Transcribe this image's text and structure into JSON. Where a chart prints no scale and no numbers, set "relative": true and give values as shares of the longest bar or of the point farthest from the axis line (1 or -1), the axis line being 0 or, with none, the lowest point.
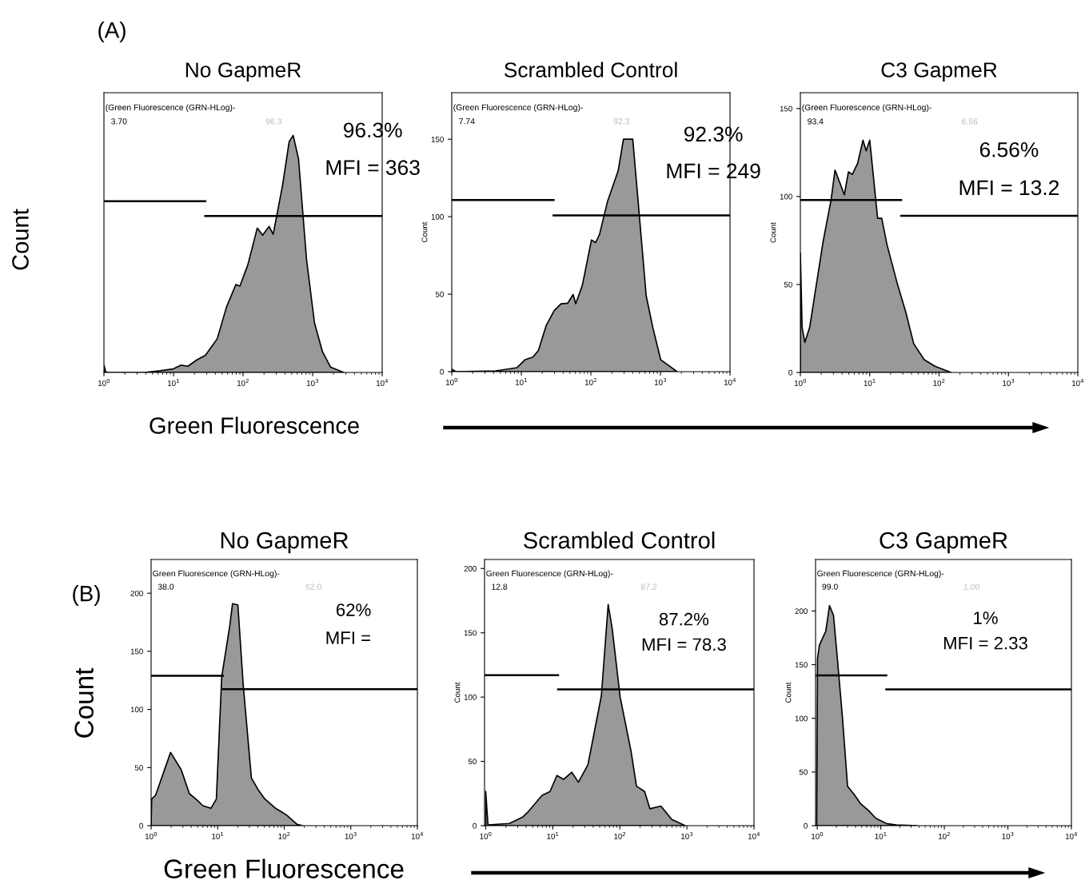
{
  "chart_data": [
    {
      "type": "area",
      "title": "No GapmeR",
      "xlabel": "Green Fluorescence",
      "ylabel": "Count",
      "log": "x",
      "xlim": [
        1,
        10000
      ],
      "xticks": [
        {
          "value": 1,
          "label": "10$^{0}$"
        },
        {
          "value": 10,
          "label": "10$^{1}$"
        },
        {
          "value": 100,
          "label": "10$^{2}$"
        },
        {
          "value": 1000,
          "label": "10$^{3}$"
        },
        {
          "value": 10000,
          "label": "10$^{4}$"
        }
      ],
      "relative": true,
      "annotations": [
        "(Green Fluorescence (GRN-HLog)-",
        "3.70",
        "96.3",
        "96.3%",
        "MFI = 363",
        "(A)"
      ],
      "series": [
        {
          "color": "#999999",
          "x": [
            1,
            1.05,
            1.1,
            3.76,
            6.38,
            9.9,
            12.9,
            16.1,
            21.9,
            28.6,
            34.1,
            42.5,
            57.8,
            78.8,
            90,
            117,
            160,
            191,
            237,
            271,
            369,
            460,
            525,
            627,
            817,
            1064,
            1387,
            1807,
            2806
          ],
          "values": [
            0.031,
            0.007,
            0,
            0,
            0.007,
            0.015,
            0.031,
            0.026,
            0.054,
            0.072,
            0.103,
            0.142,
            0.276,
            0.371,
            0.364,
            0.454,
            0.609,
            0.579,
            0.616,
            0.583,
            0.788,
            0.974,
            1,
            0.901,
            0.477,
            0.209,
            0.087,
            0.023,
            0
          ]
        },
        {
          "type": "line",
          "color": "#000000",
          "x": [
            1,
            28.6
          ],
          "values": [
            0.722,
            0.722
          ]
        },
        {
          "type": "line",
          "color": "#000000",
          "x": [
            28.6,
            10000
          ],
          "values": [
            0.66,
            0.66
          ]
        }
      ]
    },
    {
      "type": "area",
      "title": "Scrambled Control",
      "ylabel": "Count",
      "log": "x",
      "xlim": [
        1,
        10000
      ],
      "xticks": [
        {
          "value": 1,
          "label": "10$^{0}$"
        },
        {
          "value": 10,
          "label": "10$^{1}$"
        },
        {
          "value": 100,
          "label": "10$^{2}$"
        },
        {
          "value": 1000,
          "label": "10$^{3}$"
        },
        {
          "value": 10000,
          "label": "10$^{4}$"
        }
      ],
      "ylim": [
        0,
        180
      ],
      "yticks": [
        0,
        50,
        100,
        150
      ],
      "annotations": [
        "(Green Fluorescence (GRN-HLog)-",
        "7.74",
        "92.3",
        "92.3%",
        "MFI = 249"
      ],
      "series": [
        {
          "color": "#999999",
          "x": [
            1,
            1.14,
            4.3,
            8.7,
            11.3,
            14.7,
            17.6,
            22.9,
            29.8,
            37.2,
            46.5,
            55.5,
            60.6,
            75.5,
            102,
            117,
            133,
            174,
            247,
            294,
            400,
            498,
            624,
            779,
            1009,
            1737
          ],
          "values": [
            1.7,
            0,
            0.5,
            2.6,
            7.7,
            9.4,
            13.7,
            30,
            39.5,
            43.8,
            44.2,
            49.8,
            43.8,
            55.8,
            85,
            83.3,
            88.5,
            110,
            129.7,
            150,
            150,
            100.5,
            49,
            28.3,
            7.7,
            0
          ]
        },
        {
          "type": "line",
          "color": "#000000",
          "x": [
            1,
            29.1
          ],
          "values": [
            110.8,
            110.8
          ]
        },
        {
          "type": "line",
          "color": "#000000",
          "x": [
            29.1,
            10000
          ],
          "values": [
            100.8,
            100.8
          ]
        }
      ]
    },
    {
      "type": "area",
      "title": "C3 GapmeR",
      "ylabel": "Count",
      "log": "x",
      "xlim": [
        1,
        10000
      ],
      "xticks": [
        {
          "value": 1,
          "label": "10$^{0}$"
        },
        {
          "value": 10,
          "label": "10$^{1}$"
        },
        {
          "value": 100,
          "label": "10$^{2}$"
        },
        {
          "value": 1000,
          "label": "10$^{3}$"
        },
        {
          "value": 10000,
          "label": "10$^{4}$"
        }
      ],
      "ylim": [
        0,
        159
      ],
      "yticks": [
        0,
        50,
        100,
        150
      ],
      "annotations": [
        "(Green Fluorescence (GRN-HLog)-",
        "93.4",
        "6.56",
        "6.56%",
        "MFI = 13.2"
      ],
      "series": [
        {
          "color": "#999999",
          "x": [
            1,
            1.06,
            1.16,
            1.36,
            2.12,
            2.77,
            3.16,
            3.78,
            4.31,
            4.93,
            5.62,
            6.71,
            8,
            8.9,
            10,
            13,
            14.9,
            17.8,
            25.3,
            33,
            43,
            61,
            87.5,
            149
          ],
          "values": [
            67.9,
            25.5,
            17.1,
            25.5,
            74,
            98,
            115,
            107,
            101,
            114,
            112.6,
            119,
            132,
            126,
            132,
            87.6,
            87.6,
            72.4,
            49.7,
            34.5,
            16.4,
            7.3,
            3.5,
            0
          ]
        },
        {
          "type": "line",
          "color": "#000000",
          "x": [
            1,
            28.4
          ],
          "values": [
            98,
            98
          ]
        },
        {
          "type": "line",
          "color": "#000000",
          "x": [
            28.4,
            10000
          ],
          "values": [
            89,
            89
          ]
        }
      ]
    },
    {
      "type": "area",
      "title": "No GapmeR",
      "xlabel": "Green Fluorescence",
      "ylabel": "Count",
      "log": "x",
      "xlim": [
        1,
        10000
      ],
      "xticks": [
        {
          "value": 1,
          "label": "10$^{0}$"
        },
        {
          "value": 10,
          "label": "10$^{1}$"
        },
        {
          "value": 100,
          "label": "10$^{2}$"
        },
        {
          "value": 1000,
          "label": "10$^{3}$"
        },
        {
          "value": 10000,
          "label": "10$^{4}$"
        }
      ],
      "ylim": [
        0,
        229
      ],
      "yticks": [
        0,
        50,
        100,
        150,
        200
      ],
      "annotations": [
        "Green Fluorescence (GRN-HLog)-",
        "38.0",
        "62.0",
        "62%",
        "MFI =",
        "(B)"
      ],
      "series": [
        {
          "color": "#999999",
          "x": [
            1,
            1.02,
            1.17,
            1.96,
            2.84,
            3.76,
            4.97,
            5.99,
            7.92,
            9.55,
            11.5,
            15.2,
            16.7,
            20.1,
            24.2,
            32.1,
            40.5,
            51.2,
            74.2,
            108,
            156,
            188
          ],
          "values": [
            0,
            22.9,
            26.3,
            63,
            48,
            27.5,
            21.8,
            17.2,
            14.9,
            22.9,
            128,
            172,
            191,
            190,
            121,
            41,
            31,
            22.9,
            14.9,
            9.2,
            1.1,
            0
          ]
        },
        {
          "type": "line",
          "color": "#000000",
          "x": [
            1,
            12
          ],
          "values": [
            129,
            129
          ]
        },
        {
          "type": "line",
          "color": "#000000",
          "x": [
            12,
            10000
          ],
          "values": [
            117.5,
            117.5
          ]
        }
      ]
    },
    {
      "type": "area",
      "title": "Scrambled Control",
      "ylabel": "Count",
      "log": "x",
      "xlim": [
        0.96,
        10000
      ],
      "xticks": [
        {
          "value": 1,
          "label": "10$^{0}$"
        },
        {
          "value": 10,
          "label": "10$^{1}$"
        },
        {
          "value": 100,
          "label": "10$^{2}$"
        },
        {
          "value": 1000,
          "label": "10$^{3}$"
        },
        {
          "value": 10000,
          "label": "10$^{4}$"
        }
      ],
      "ylim": [
        0,
        207
      ],
      "yticks": [
        0,
        50,
        100,
        150,
        200
      ],
      "annotations": [
        "Green Fluorescence (GRN-HLog)-",
        "12.8",
        "87.2",
        "87.2%",
        "MFI = 78.3"
      ],
      "series": [
        {
          "color": "#999999",
          "x": [
            1,
            1.08,
            2.26,
            3.6,
            4.33,
            6.89,
            9.1,
            11.5,
            14.5,
            19.2,
            24.1,
            33.4,
            53,
            67,
            77,
            101,
            147,
            177,
            234,
            281,
            409,
            595,
            944
          ],
          "values": [
            26.6,
            0.6,
            1.7,
            6.9,
            11,
            23.5,
            26.6,
            39,
            36,
            41.5,
            33.8,
            47.3,
            101,
            172,
            153,
            100,
            57.7,
            30.7,
            26.6,
            13.1,
            15.2,
            4.8,
            0
          ]
        },
        {
          "type": "line",
          "color": "#000000",
          "x": [
            0.96,
            12
          ],
          "values": [
            117,
            117
          ]
        },
        {
          "type": "line",
          "color": "#000000",
          "x": [
            12,
            10000
          ],
          "values": [
            106,
            106
          ]
        }
      ]
    },
    {
      "type": "area",
      "title": "C3 GapmeR",
      "ylabel": "Count",
      "log": "x",
      "xlim": [
        0.94,
        10000
      ],
      "xticks": [
        {
          "value": 1,
          "label": "10$^{0}$"
        },
        {
          "value": 10,
          "label": "10$^{1}$"
        },
        {
          "value": 100,
          "label": "10$^{2}$"
        },
        {
          "value": 1000,
          "label": "10$^{3}$"
        },
        {
          "value": 10000,
          "label": "10$^{4}$"
        }
      ],
      "ylim": [
        0,
        248
      ],
      "yticks": [
        0,
        50,
        100,
        150,
        200
      ],
      "annotations": [
        "Green Fluorescence (GRN-HLog)-",
        "99.0",
        "1.00",
        "1%",
        "MFI = 2.33"
      ],
      "series": [
        {
          "color": "#999999",
          "x": [
            0.98,
            1.01,
            1.08,
            1.24,
            1.36,
            1.56,
            1.8,
            2.07,
            2.49,
            3,
            3.79,
            4.78,
            6.33,
            8.37,
            12.2,
            17.6,
            37
          ],
          "values": [
            0,
            156,
            168,
            176,
            181,
            205,
            196,
            156,
            101,
            36.7,
            29.3,
            20.6,
            14.4,
            6.9,
            2,
            0.7,
            0
          ]
        },
        {
          "type": "line",
          "color": "#000000",
          "x": [
            0.94,
            12.2
          ],
          "values": [
            140,
            140
          ]
        },
        {
          "type": "line",
          "color": "#000000",
          "x": [
            12.2,
            10000
          ],
          "values": [
            127,
            127
          ]
        }
      ]
    }
  ]
}
